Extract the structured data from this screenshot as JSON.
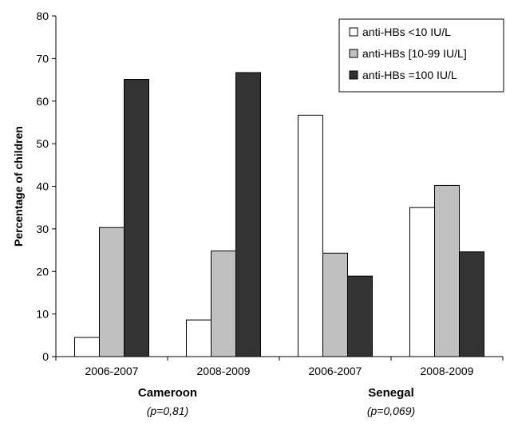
{
  "chart_data": {
    "type": "bar",
    "title": "",
    "ylabel": "Percentage of children",
    "xlabel": "",
    "ylim": [
      0,
      80
    ],
    "yticks": [
      0,
      10,
      20,
      30,
      40,
      50,
      60,
      70,
      80
    ],
    "grid": false,
    "legend_position": "top-right",
    "categories": [
      "2006-2007",
      "2008-2009",
      "2006-2007",
      "2008-2009"
    ],
    "groups": [
      {
        "name": "Cameroon",
        "note": "(p=0,81)"
      },
      {
        "name": "Senegal",
        "note": "(p=0,069)"
      }
    ],
    "series": [
      {
        "name": "anti-HBs <10 IU/L",
        "color": "#ffffff",
        "values": [
          4.5,
          8.6,
          56.7,
          35.0
        ]
      },
      {
        "name": "anti-HBs [10-99 IU/L]",
        "color": "#c0c0c0",
        "values": [
          30.3,
          24.8,
          24.3,
          40.2
        ]
      },
      {
        "name": "anti-HBs =100 IU/L",
        "color": "#333333",
        "values": [
          65.1,
          66.7,
          18.9,
          24.6
        ]
      }
    ]
  }
}
